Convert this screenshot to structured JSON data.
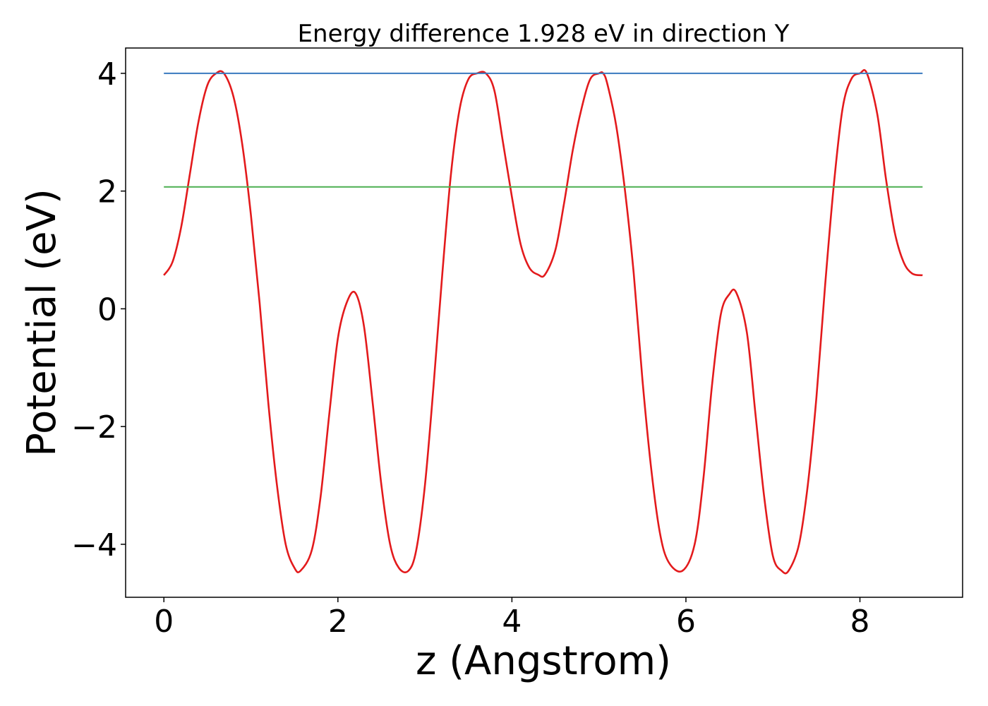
{
  "chart_data": {
    "type": "line",
    "title": "Energy difference 1.928 eV in direction Y",
    "xlabel": "z (Angstrom)",
    "ylabel": "Potential (eV)",
    "xlim": [
      -0.44,
      9.18
    ],
    "ylim": [
      -4.9,
      4.43
    ],
    "grid": false,
    "legend": "none",
    "xticks": [
      {
        "value": 0,
        "label": "0"
      },
      {
        "value": 2,
        "label": "2"
      },
      {
        "value": 4,
        "label": "4"
      },
      {
        "value": 6,
        "label": "6"
      },
      {
        "value": 8,
        "label": "8"
      }
    ],
    "yticks": [
      {
        "value": 4,
        "label": "4"
      },
      {
        "value": 2,
        "label": "2"
      },
      {
        "value": 0,
        "label": "0"
      },
      {
        "value": -2,
        "label": "−2"
      },
      {
        "value": -4,
        "label": "−4"
      }
    ],
    "series": [
      {
        "color": "#e31a1c",
        "style": "curve",
        "x": [
          0.0,
          0.1,
          0.2,
          0.3,
          0.4,
          0.5,
          0.6,
          0.69,
          0.8,
          0.9,
          1.0,
          1.1,
          1.2,
          1.3,
          1.4,
          1.5,
          1.57,
          1.7,
          1.8,
          1.9,
          2.0,
          2.1,
          2.2,
          2.3,
          2.4,
          2.5,
          2.6,
          2.7,
          2.81,
          2.9,
          3.0,
          3.1,
          3.2,
          3.3,
          3.4,
          3.5,
          3.6,
          3.7,
          3.8,
          3.9,
          4.0,
          4.1,
          4.2,
          4.3,
          4.38,
          4.5,
          4.6,
          4.7,
          4.8,
          4.9,
          5.0,
          5.05,
          5.1,
          5.2,
          5.3,
          5.4,
          5.5,
          5.6,
          5.7,
          5.8,
          5.96,
          6.1,
          6.2,
          6.3,
          6.4,
          6.5,
          6.58,
          6.7,
          6.8,
          6.9,
          7.0,
          7.1,
          7.18,
          7.3,
          7.4,
          7.5,
          7.6,
          7.7,
          7.8,
          7.9,
          8.0,
          8.08,
          8.2,
          8.3,
          8.4,
          8.5,
          8.6,
          8.72
        ],
        "y": [
          0.57,
          0.8,
          1.4,
          2.3,
          3.2,
          3.8,
          4.0,
          4.0,
          3.6,
          2.8,
          1.6,
          0.1,
          -1.6,
          -3.0,
          -4.0,
          -4.4,
          -4.45,
          -4.1,
          -3.2,
          -1.8,
          -0.5,
          0.1,
          0.27,
          -0.3,
          -1.6,
          -3.0,
          -4.0,
          -4.4,
          -4.45,
          -4.1,
          -3.0,
          -1.3,
          0.6,
          2.3,
          3.4,
          3.9,
          4.0,
          4.0,
          3.7,
          2.8,
          1.9,
          1.1,
          0.7,
          0.58,
          0.58,
          1.0,
          1.8,
          2.7,
          3.4,
          3.9,
          4.0,
          4.0,
          3.8,
          3.1,
          2.0,
          0.6,
          -1.2,
          -2.7,
          -3.8,
          -4.3,
          -4.45,
          -4.0,
          -2.9,
          -1.3,
          -0.1,
          0.25,
          0.27,
          -0.4,
          -1.8,
          -3.2,
          -4.2,
          -4.45,
          -4.45,
          -4.0,
          -3.0,
          -1.5,
          0.4,
          2.1,
          3.4,
          3.9,
          4.0,
          4.0,
          3.3,
          2.2,
          1.3,
          0.8,
          0.6,
          0.57
        ]
      },
      {
        "color": "#3a7abf",
        "style": "hline",
        "x": [
          0.0,
          8.72
        ],
        "y": [
          4.0,
          4.0
        ]
      },
      {
        "color": "#4caf50",
        "style": "hline",
        "x": [
          0.0,
          8.72
        ],
        "y": [
          2.07,
          2.07
        ]
      }
    ]
  }
}
